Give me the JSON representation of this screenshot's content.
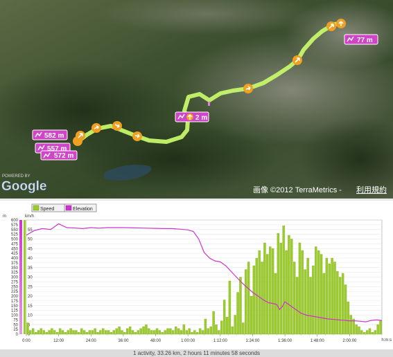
{
  "map": {
    "google_powered": "POWERED BY",
    "google_logo": "Google",
    "copyright": "画像 ©2012 TerraMetrics -",
    "terms": "利用規約",
    "markers": [
      {
        "text": "582 m"
      },
      {
        "text": "557 m"
      },
      {
        "text": "572 m"
      },
      {
        "text": "2 m"
      },
      {
        "text": "77 m"
      }
    ],
    "route_color": "#b8f05a",
    "marker_color": "#d044c8",
    "arrow_color": "#f0a020"
  },
  "legend": {
    "speed": "Speed",
    "elevation": "Elevation",
    "speed_color": "#9ccc2c",
    "elevation_color": "#cc33cc"
  },
  "axes": {
    "left_unit": "m",
    "right_unit": "km/h",
    "x_unit": "h:m:s"
  },
  "footer": {
    "summary": "1 activity, 33.26 km, 2 hours 11 minutes 58 seconds"
  },
  "chart_data": {
    "type": "bar",
    "x_unit": "minutes",
    "x_ticks": [
      "0:00",
      "12:00",
      "24:00",
      "36:00",
      "48:00",
      "1:00:00",
      "1:12:00",
      "1:24:00",
      "1:36:00",
      "1:48:00",
      "2:00:00"
    ],
    "xlim": [
      0,
      132
    ],
    "y_elevation_ticks": [
      0,
      25,
      50,
      75,
      100,
      125,
      150,
      175,
      200,
      225,
      250,
      275,
      300,
      325,
      350,
      375,
      400,
      425,
      450,
      475,
      500,
      525,
      550,
      575,
      600
    ],
    "y_speed_ticks": [
      0,
      5,
      10,
      15,
      20,
      25,
      30,
      35,
      40,
      45,
      50,
      55
    ],
    "ylim_elevation": [
      0,
      600
    ],
    "ylim_speed": [
      0,
      60
    ],
    "series": [
      {
        "name": "Speed",
        "type": "bar",
        "x": [
          0.5,
          1.5,
          2.5,
          3.5,
          4.5,
          5.5,
          6.5,
          7.5,
          8.5,
          9.5,
          10.5,
          11.5,
          12.5,
          13.5,
          14.5,
          15.5,
          16.5,
          17.5,
          18.5,
          19.5,
          20.5,
          21.5,
          22.5,
          23.5,
          24.5,
          25.5,
          26.5,
          27.5,
          28.5,
          29.5,
          30.5,
          31.5,
          32.5,
          33.5,
          34.5,
          35.5,
          36.5,
          37.5,
          38.5,
          39.5,
          40.5,
          41.5,
          42.5,
          43.5,
          44.5,
          45.5,
          46.5,
          47.5,
          48.5,
          49.5,
          50.5,
          51.5,
          52.5,
          53.5,
          54.5,
          55.5,
          56.5,
          57.5,
          58.5,
          59.5,
          60.5,
          61.5,
          62.5,
          63.5,
          64.5,
          65.5,
          66.5,
          67.5,
          68.5,
          69.5,
          70.5,
          71.5,
          72.5,
          73.5,
          74.5,
          75.5,
          76.5,
          77.5,
          78.5,
          79.5,
          80.5,
          81.5,
          82.5,
          83.5,
          84.5,
          85.5,
          86.5,
          87.5,
          88.5,
          89.5,
          90.5,
          91.5,
          92.5,
          93.5,
          94.5,
          95.5,
          96.5,
          97.5,
          98.5,
          99.5,
          100.5,
          101.5,
          102.5,
          103.5,
          104.5,
          105.5,
          106.5,
          107.5,
          108.5,
          109.5,
          110.5,
          111.5,
          112.5,
          113.5,
          114.5,
          115.5,
          116.5,
          117.5,
          118.5,
          119.5,
          120.5,
          121.5,
          122.5,
          123.5,
          124.5,
          125.5,
          126.5,
          127.5,
          128.5,
          129.5,
          130.5,
          131.5
        ],
        "values": [
          6,
          2,
          3,
          1,
          2,
          3,
          2,
          1,
          2,
          3,
          2,
          1,
          3,
          2,
          1,
          2,
          3,
          2,
          2,
          1,
          3,
          2,
          1,
          2,
          2,
          3,
          1,
          2,
          3,
          2,
          2,
          1,
          2,
          3,
          4,
          2,
          1,
          3,
          4,
          2,
          1,
          2,
          3,
          4,
          5,
          3,
          2,
          2,
          3,
          2,
          1,
          2,
          3,
          3,
          2,
          4,
          3,
          2,
          5,
          2,
          3,
          1,
          2,
          1,
          3,
          2,
          8,
          3,
          4,
          12,
          5,
          2,
          7,
          18,
          9,
          28,
          4,
          10,
          22,
          30,
          6,
          34,
          38,
          20,
          36,
          40,
          44,
          38,
          48,
          42,
          46,
          45,
          32,
          53,
          48,
          57,
          44,
          52,
          50,
          38,
          30,
          48,
          44,
          34,
          40,
          30,
          36,
          46,
          44,
          42,
          32,
          40,
          37,
          40,
          38,
          33,
          30,
          32,
          26,
          17,
          10,
          8,
          5,
          4,
          2,
          1,
          2,
          3,
          1,
          2,
          5,
          7
        ],
        "color": "#9ccc2c"
      },
      {
        "name": "Elevation",
        "type": "line",
        "x": [
          0,
          3,
          6,
          9,
          12,
          15,
          18,
          21,
          24,
          27,
          30,
          33,
          36,
          39,
          42,
          45,
          48,
          51,
          54,
          57,
          60,
          62,
          64,
          66,
          68,
          70,
          72,
          74,
          76,
          78,
          80,
          82,
          84,
          86,
          88,
          90,
          92,
          93,
          94,
          95,
          96,
          98,
          100,
          102,
          104,
          106,
          108,
          110,
          112,
          114,
          116,
          118,
          120,
          122,
          124,
          126,
          128,
          130,
          132
        ],
        "values": [
          520,
          545,
          555,
          550,
          580,
          560,
          558,
          555,
          560,
          557,
          560,
          560,
          560,
          559,
          558,
          557,
          556,
          555,
          555,
          552,
          548,
          540,
          500,
          430,
          400,
          385,
          380,
          360,
          330,
          300,
          270,
          245,
          220,
          200,
          180,
          165,
          160,
          155,
          130,
          145,
          170,
          150,
          130,
          110,
          100,
          95,
          90,
          85,
          80,
          78,
          75,
          73,
          70,
          70,
          68,
          65,
          72,
          75,
          72
        ],
        "color": "#cc33cc"
      }
    ]
  }
}
